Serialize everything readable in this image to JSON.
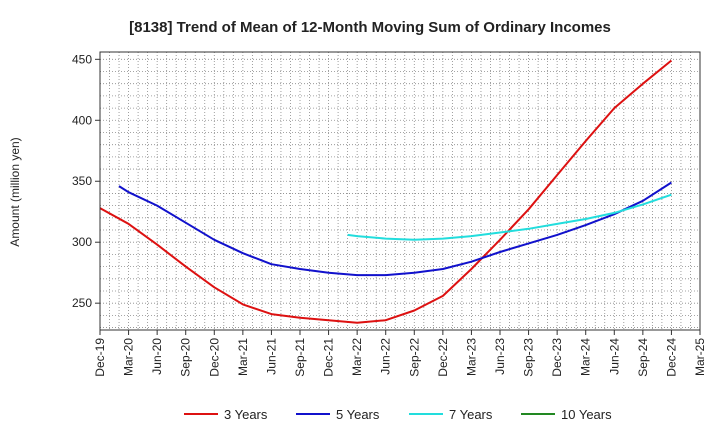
{
  "chart_data": {
    "type": "line",
    "title": "[8138]  Trend of Mean of 12-Month Moving Sum of Ordinary Incomes",
    "xlabel": "",
    "ylabel": "Amount (million yen)",
    "ylim": [
      228,
      456
    ],
    "yticks": [
      250,
      300,
      350,
      400,
      450
    ],
    "x_ticks": [
      "Dec-19",
      "Mar-20",
      "Jun-20",
      "Sep-20",
      "Dec-20",
      "Mar-21",
      "Jun-21",
      "Sep-21",
      "Dec-21",
      "Mar-22",
      "Jun-22",
      "Sep-22",
      "Dec-22",
      "Mar-23",
      "Jun-23",
      "Sep-23",
      "Dec-23",
      "Mar-24",
      "Jun-24",
      "Sep-24",
      "Dec-24",
      "Mar-25"
    ],
    "grid": true,
    "legend_position": "bottom",
    "series": [
      {
        "name": "3 Years",
        "color": "#dd1111",
        "x": [
          "Dec-19",
          "Mar-20",
          "Jun-20",
          "Sep-20",
          "Dec-20",
          "Mar-21",
          "Jun-21",
          "Sep-21",
          "Dec-21",
          "Mar-22",
          "Jun-22",
          "Sep-22",
          "Dec-22",
          "Mar-23",
          "Jun-23",
          "Sep-23",
          "Dec-23",
          "Mar-24",
          "Jun-24",
          "Sep-24",
          "Dec-24"
        ],
        "values": [
          328,
          315,
          298,
          280,
          263,
          249,
          241,
          238,
          236,
          234,
          236,
          244,
          256,
          278,
          302,
          327,
          355,
          383,
          410,
          430,
          449
        ]
      },
      {
        "name": "5 Years",
        "color": "#1111cc",
        "x": [
          "Feb-20",
          "Mar-20",
          "Jun-20",
          "Sep-20",
          "Dec-20",
          "Mar-21",
          "Jun-21",
          "Sep-21",
          "Dec-21",
          "Mar-22",
          "Jun-22",
          "Sep-22",
          "Dec-22",
          "Mar-23",
          "Jun-23",
          "Sep-23",
          "Dec-23",
          "Mar-24",
          "Jun-24",
          "Sep-24",
          "Dec-24"
        ],
        "values": [
          346,
          341,
          330,
          316,
          302,
          291,
          282,
          278,
          275,
          273,
          273,
          275,
          278,
          284,
          292,
          299,
          306,
          314,
          323,
          334,
          349
        ]
      },
      {
        "name": "7 Years",
        "color": "#22dddd",
        "x": [
          "Feb-22",
          "Mar-22",
          "Jun-22",
          "Sep-22",
          "Dec-22",
          "Mar-23",
          "Jun-23",
          "Sep-23",
          "Dec-23",
          "Mar-24",
          "Jun-24",
          "Sep-24",
          "Dec-24"
        ],
        "values": [
          306,
          305,
          303,
          302,
          303,
          305,
          308,
          311,
          315,
          319,
          324,
          331,
          339
        ]
      },
      {
        "name": "10 Years",
        "color": "#228822",
        "x": [],
        "values": []
      }
    ]
  }
}
